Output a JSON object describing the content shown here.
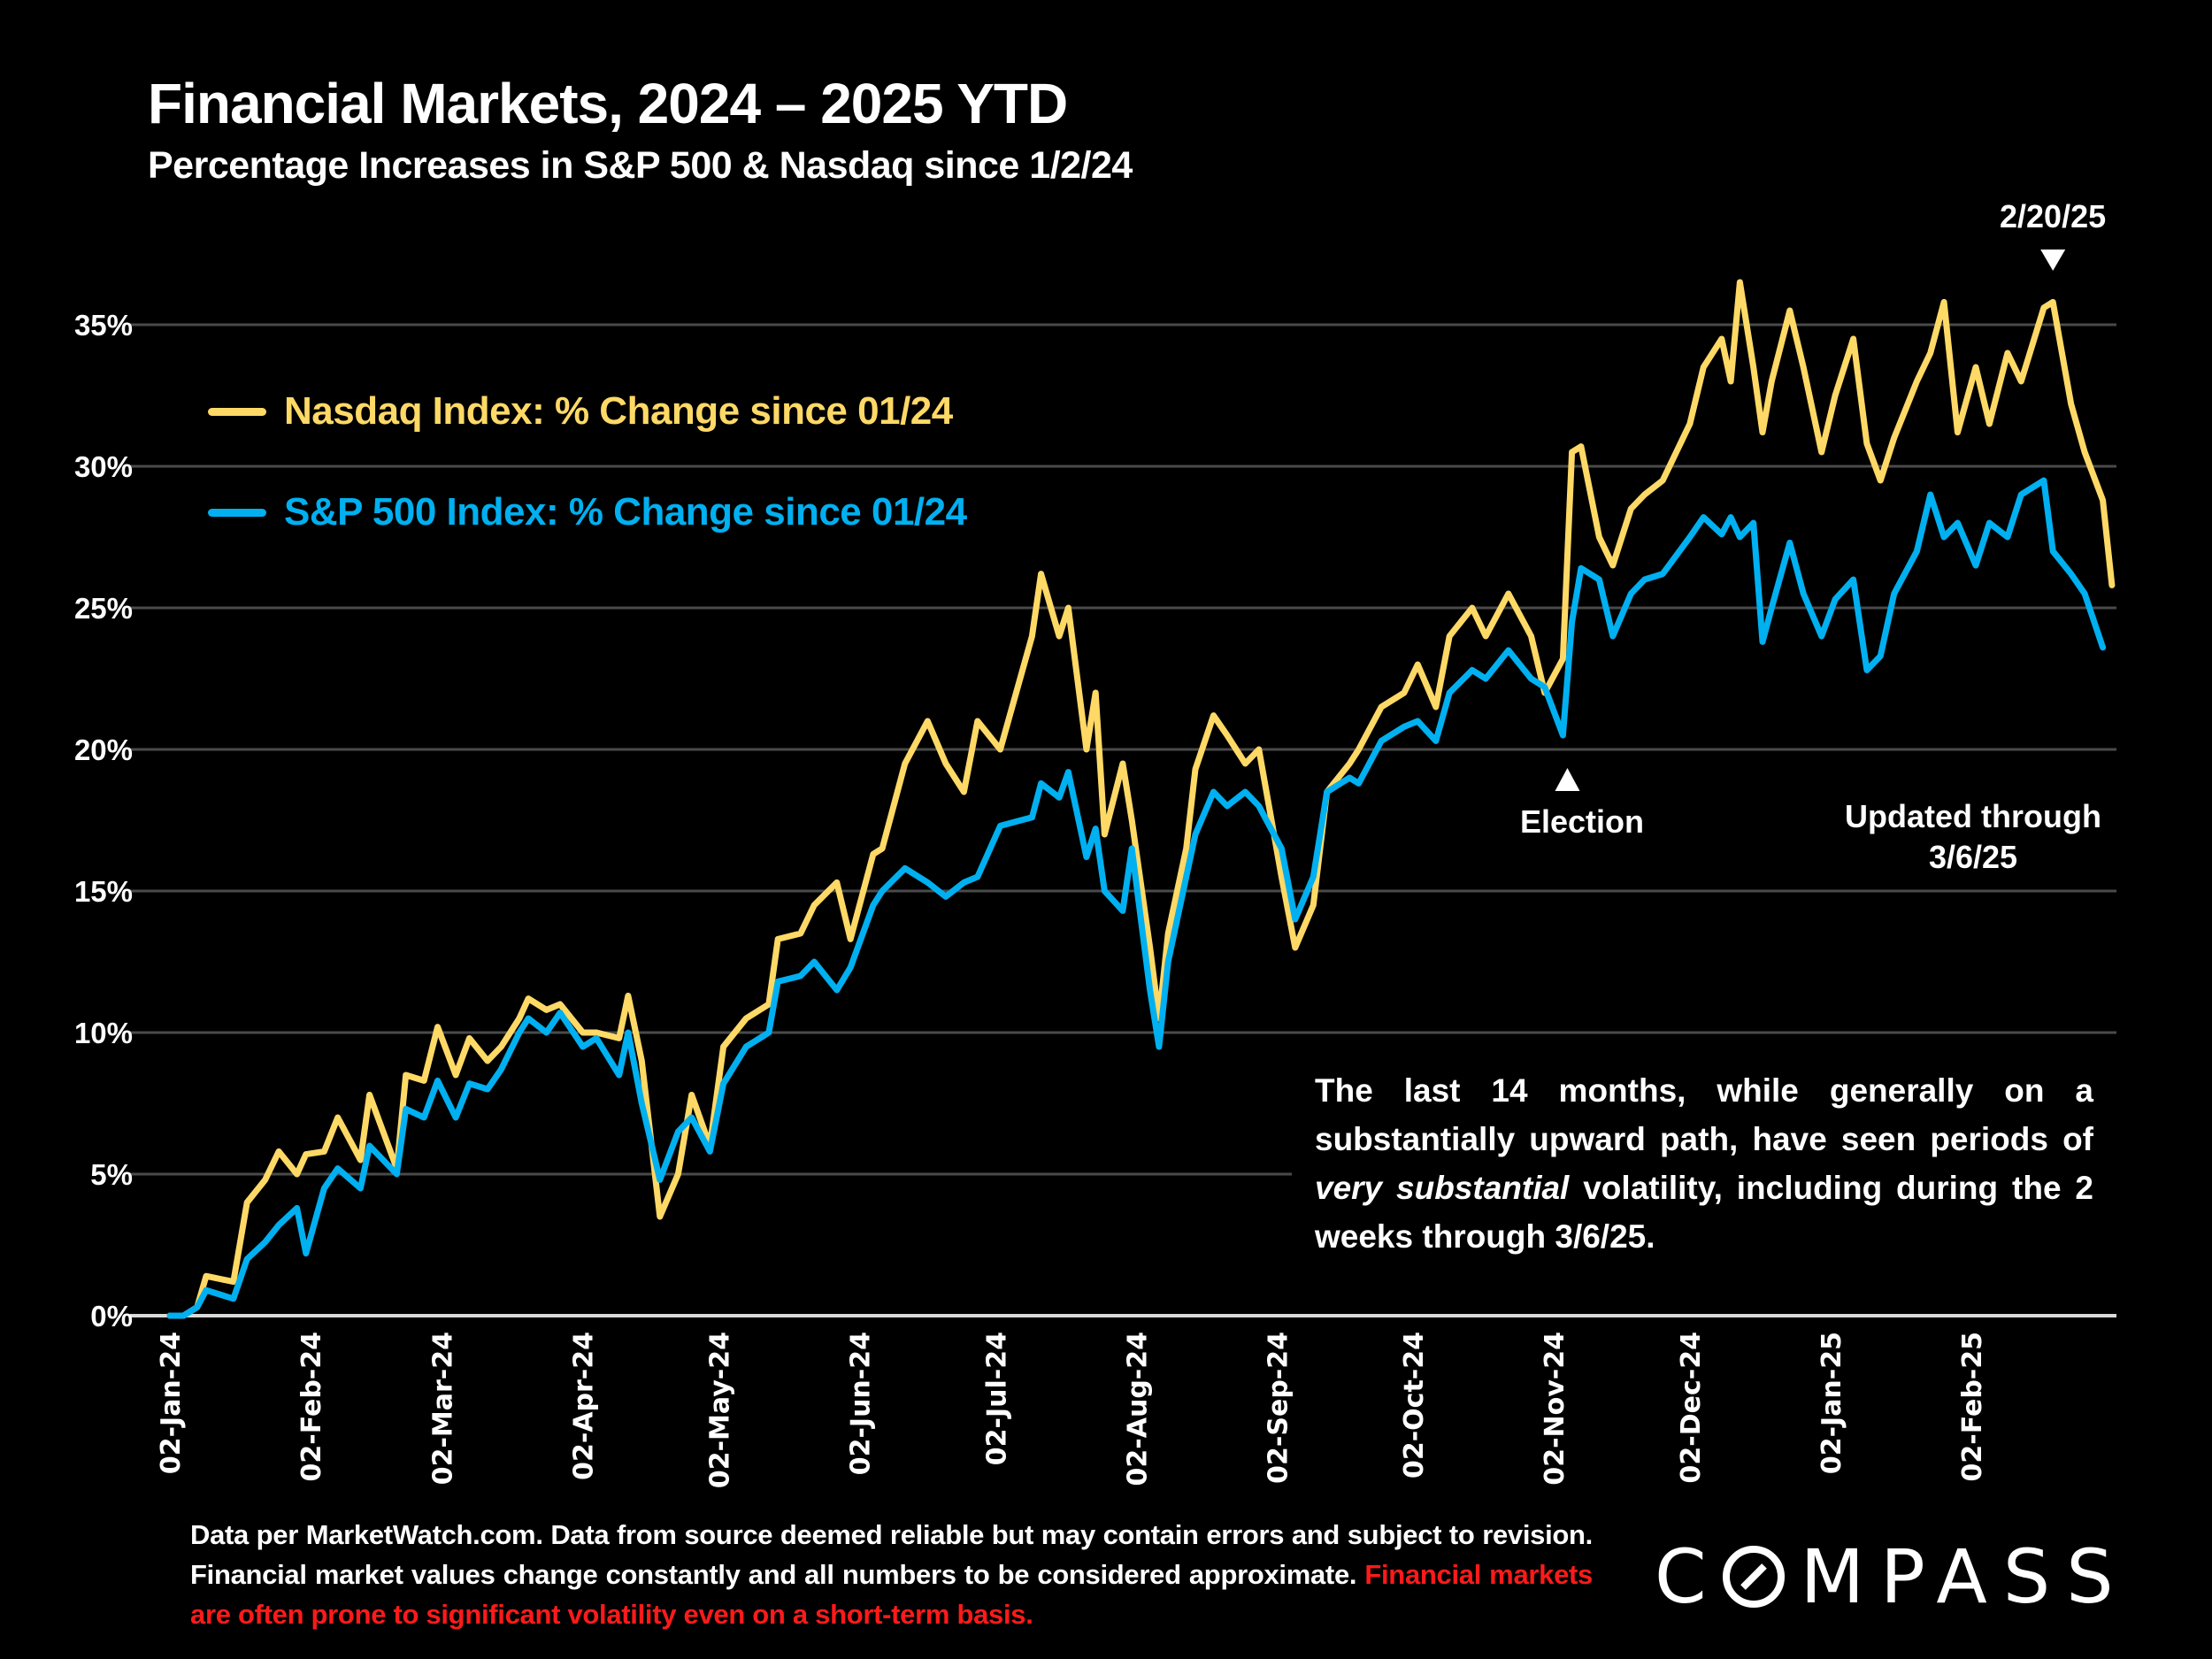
{
  "header": {
    "title": "Financial Markets, 2024 – 2025 YTD",
    "subtitle": "Percentage Increases in S&P 500 & Nasdaq since 1/2/24"
  },
  "annotations": {
    "peak_label": "2/20/25",
    "election_label": "Election",
    "updated_line1": "Updated through",
    "updated_line2": "3/6/25",
    "note_part1": "The last 14 months, while generally on a substantially upward path, have seen periods of ",
    "note_italic": "very substantial",
    "note_part2": " volatility, including during the 2 weeks through 3/6/25."
  },
  "footer": {
    "text": "Data per MarketWatch.com. Data from source deemed reliable but may contain errors and subject to revision. Financial market values change constantly and all numbers to be considered approximate. ",
    "warning": "Financial markets are often prone to significant volatility even on a short-term basis.",
    "warning_color": "#ff1a1a"
  },
  "logo": {
    "text_before": "C",
    "text_after": "MPASS",
    "icon": "compass-o-slash-icon"
  },
  "colors": {
    "nasdaq": "#ffd966",
    "sp500": "#00b0f0",
    "grid": "#4a4a4a",
    "axis": "#d9d9d9",
    "background": "#000000"
  },
  "chart_data": {
    "type": "line",
    "title": "Financial Markets, 2024 – 2025 YTD",
    "subtitle": "Percentage Increases in S&P 500 & Nasdaq since 1/2/24",
    "xlabel": "",
    "ylabel": "",
    "ylim": [
      0,
      35
    ],
    "yticks": [
      0,
      5,
      10,
      15,
      20,
      25,
      30,
      35
    ],
    "ytick_labels": [
      "0%",
      "5%",
      "10%",
      "15%",
      "20%",
      "25%",
      "30%",
      "35%"
    ],
    "xlim": [
      "2024-01-02",
      "2025-03-06"
    ],
    "xtick_labels": [
      "02-Jan-24",
      "02-Feb-24",
      "02-Mar-24",
      "02-Apr-24",
      "02-May-24",
      "02-Jun-24",
      "02-Jul-24",
      "02-Aug-24",
      "02-Sep-24",
      "02-Oct-24",
      "02-Nov-24",
      "02-Dec-24",
      "02-Jan-25",
      "02-Feb-25"
    ],
    "xtick_dates": [
      "2024-01-02",
      "2024-02-02",
      "2024-03-02",
      "2024-04-02",
      "2024-05-02",
      "2024-06-02",
      "2024-07-02",
      "2024-08-02",
      "2024-09-02",
      "2024-10-02",
      "2024-11-02",
      "2024-12-02",
      "2025-01-02",
      "2025-02-02"
    ],
    "grid": true,
    "legend_position": "top-left",
    "x": [
      "2024-01-02",
      "2024-01-05",
      "2024-01-08",
      "2024-01-10",
      "2024-01-16",
      "2024-01-19",
      "2024-01-23",
      "2024-01-26",
      "2024-01-30",
      "2024-02-01",
      "2024-02-05",
      "2024-02-08",
      "2024-02-13",
      "2024-02-15",
      "2024-02-21",
      "2024-02-23",
      "2024-02-27",
      "2024-03-01",
      "2024-03-05",
      "2024-03-08",
      "2024-03-12",
      "2024-03-15",
      "2024-03-19",
      "2024-03-21",
      "2024-03-25",
      "2024-03-28",
      "2024-04-02",
      "2024-04-05",
      "2024-04-10",
      "2024-04-12",
      "2024-04-15",
      "2024-04-19",
      "2024-04-23",
      "2024-04-26",
      "2024-04-30",
      "2024-05-03",
      "2024-05-08",
      "2024-05-13",
      "2024-05-15",
      "2024-05-20",
      "2024-05-23",
      "2024-05-28",
      "2024-05-31",
      "2024-06-05",
      "2024-06-07",
      "2024-06-12",
      "2024-06-17",
      "2024-06-21",
      "2024-06-25",
      "2024-06-28",
      "2024-07-03",
      "2024-07-10",
      "2024-07-12",
      "2024-07-16",
      "2024-07-18",
      "2024-07-22",
      "2024-07-24",
      "2024-07-26",
      "2024-07-30",
      "2024-08-01",
      "2024-08-05",
      "2024-08-07",
      "2024-08-09",
      "2024-08-13",
      "2024-08-15",
      "2024-08-19",
      "2024-08-22",
      "2024-08-26",
      "2024-08-29",
      "2024-09-03",
      "2024-09-06",
      "2024-09-10",
      "2024-09-13",
      "2024-09-18",
      "2024-09-20",
      "2024-09-25",
      "2024-09-30",
      "2024-10-03",
      "2024-10-07",
      "2024-10-10",
      "2024-10-15",
      "2024-10-18",
      "2024-10-23",
      "2024-10-28",
      "2024-10-31",
      "2024-11-04",
      "2024-11-06",
      "2024-11-08",
      "2024-11-12",
      "2024-11-15",
      "2024-11-19",
      "2024-11-22",
      "2024-11-26",
      "2024-12-02",
      "2024-12-05",
      "2024-12-09",
      "2024-12-11",
      "2024-12-13",
      "2024-12-16",
      "2024-12-18",
      "2024-12-20",
      "2024-12-24",
      "2024-12-27",
      "2024-12-31",
      "2025-01-03",
      "2025-01-07",
      "2025-01-10",
      "2025-01-13",
      "2025-01-16",
      "2025-01-21",
      "2025-01-24",
      "2025-01-27",
      "2025-01-30",
      "2025-02-03",
      "2025-02-06",
      "2025-02-10",
      "2025-02-13",
      "2025-02-18",
      "2025-02-20",
      "2025-02-24",
      "2025-02-27",
      "2025-03-03",
      "2025-03-05",
      "2025-03-06"
    ],
    "series": [
      {
        "name": "Nasdaq Index: % Change since 01/24",
        "values": [
          0,
          0,
          0.3,
          1.4,
          1.2,
          4.0,
          4.8,
          5.8,
          5.0,
          5.7,
          5.8,
          7.0,
          5.5,
          7.8,
          5.2,
          8.5,
          8.3,
          10.2,
          8.5,
          9.8,
          9.0,
          9.5,
          10.5,
          11.2,
          10.8,
          11.0,
          10.0,
          10.0,
          9.8,
          11.3,
          9.0,
          3.5,
          5.0,
          7.8,
          6.0,
          9.5,
          10.5,
          11.0,
          13.3,
          13.5,
          14.5,
          15.3,
          13.3,
          16.3,
          16.5,
          19.5,
          21.0,
          19.5,
          18.5,
          21.0,
          20.0,
          24.0,
          26.2,
          24.0,
          25.0,
          20.0,
          22.0,
          17.0,
          19.5,
          17.5,
          13.0,
          10.5,
          13.5,
          16.5,
          19.3,
          21.2,
          20.5,
          19.5,
          20.0,
          15.5,
          13.0,
          14.5,
          18.5,
          19.5,
          20.0,
          21.5,
          22.0,
          23.0,
          21.5,
          24.0,
          25.0,
          24.0,
          25.5,
          24.0,
          22.0,
          23.2,
          30.5,
          30.7,
          27.5,
          26.5,
          28.5,
          29.0,
          29.5,
          31.5,
          33.5,
          34.5,
          33.0,
          36.5,
          33.5,
          31.2,
          33.0,
          35.5,
          33.5,
          30.5,
          32.5,
          34.5,
          30.8,
          29.5,
          31.0,
          33.0,
          34.0,
          35.8,
          31.2,
          33.5,
          31.5,
          34.0,
          33.0,
          35.6,
          35.8,
          32.2,
          30.5,
          28.8,
          25.8
        ]
      },
      {
        "name": "S&P 500 Index: % Change since 01/24",
        "values": [
          0,
          0,
          0.3,
          0.9,
          0.6,
          2.0,
          2.6,
          3.2,
          3.8,
          2.2,
          4.5,
          5.2,
          4.5,
          6.0,
          5.0,
          7.3,
          7.0,
          8.3,
          7.0,
          8.2,
          8.0,
          8.7,
          10.0,
          10.5,
          10.0,
          10.7,
          9.5,
          9.8,
          8.5,
          10.0,
          7.5,
          4.8,
          6.5,
          7.0,
          5.8,
          8.2,
          9.5,
          10.0,
          11.8,
          12.0,
          12.5,
          11.5,
          12.3,
          14.5,
          15.0,
          15.8,
          15.3,
          14.8,
          15.3,
          15.5,
          17.3,
          17.6,
          18.8,
          18.3,
          19.2,
          16.2,
          17.2,
          15.0,
          14.3,
          16.5,
          11.5,
          9.5,
          12.5,
          15.5,
          17.0,
          18.5,
          18.0,
          18.5,
          18.0,
          16.5,
          14.0,
          15.5,
          18.5,
          19.0,
          18.8,
          20.3,
          20.8,
          21.0,
          20.3,
          22.0,
          22.8,
          22.5,
          23.5,
          22.5,
          22.2,
          20.5,
          24.5,
          26.4,
          26.0,
          24.0,
          25.5,
          26.0,
          26.2,
          27.5,
          28.2,
          27.6,
          28.2,
          27.5,
          28.0,
          23.8,
          25.0,
          27.3,
          25.5,
          24.0,
          25.3,
          26.0,
          22.8,
          23.3,
          25.5,
          27.0,
          29.0,
          27.5,
          28.0,
          26.5,
          28.0,
          27.5,
          29.0,
          29.5,
          27.0,
          26.2,
          25.5,
          23.6
        ]
      }
    ]
  }
}
